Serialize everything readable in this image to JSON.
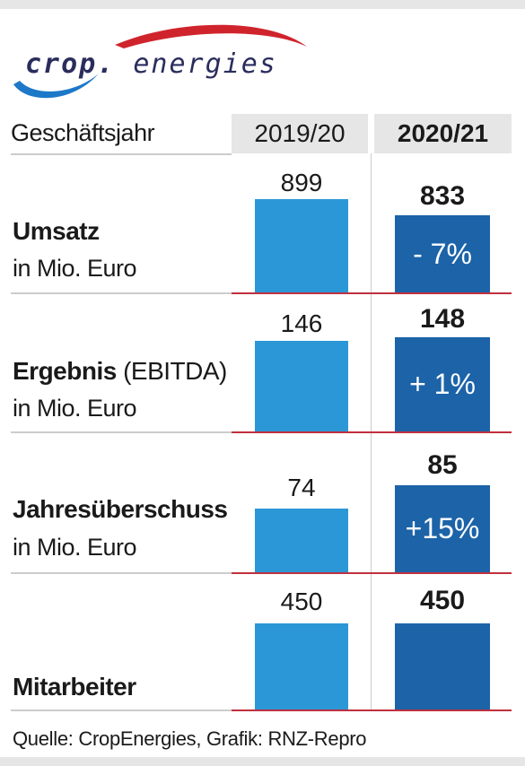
{
  "logo": {
    "part1": "crop.",
    "part2": "energies"
  },
  "header": {
    "label": "Geschäftsjahr",
    "col1": "2019/20",
    "col2": "2020/21"
  },
  "chart_data": {
    "type": "bar",
    "series": [
      {
        "name": "2019/20",
        "values": [
          899,
          146,
          74,
          450
        ]
      },
      {
        "name": "2020/21",
        "values": [
          833,
          148,
          85,
          450
        ]
      }
    ],
    "categories": [
      "Umsatz",
      "Ergebnis (EBITDA)",
      "Jahresüberschuss",
      "Mitarbeiter"
    ],
    "rows": [
      {
        "title": "Umsatz",
        "title_extra": "",
        "subtitle": "in Mio. Euro",
        "value_2019": "899",
        "value_2020": "833",
        "change": "- 7%"
      },
      {
        "title": "Ergebnis",
        "title_extra": " (EBITDA)",
        "subtitle": "in Mio. Euro",
        "value_2019": "146",
        "value_2020": "148",
        "change": "+ 1%"
      },
      {
        "title": "Jahresüberschuss",
        "title_extra": "",
        "subtitle": "in Mio. Euro",
        "value_2019": "74",
        "value_2020": "85",
        "change": "+15%"
      },
      {
        "title": "Mitarbeiter",
        "title_extra": "",
        "subtitle": "",
        "value_2019": "450",
        "value_2020": "450",
        "change": ""
      }
    ],
    "colors": {
      "bar_2019": "#2b97d6",
      "bar_2020": "#1c63a8",
      "baseline": "#c0303f"
    }
  },
  "source": "Quelle: CropEnergies, Grafik: RNZ-Repro"
}
